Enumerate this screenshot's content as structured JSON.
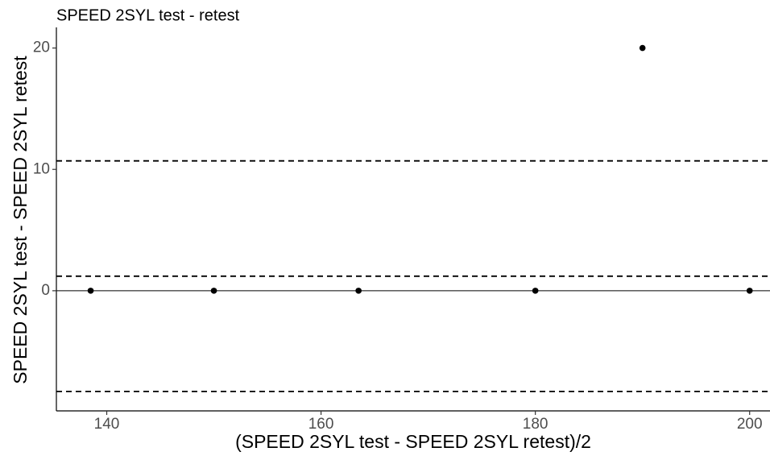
{
  "chart_data": {
    "type": "scatter",
    "title": "SPEED 2SYL test - retest",
    "x_label": "(SPEED 2SYL test - SPEED 2SYL retest)/2",
    "y_label": "SPEED 2SYL test - SPEED 2SYL retest",
    "x": [
      138.5,
      150,
      163.5,
      180,
      200,
      190
    ],
    "values": [
      0,
      0,
      0,
      0,
      0,
      20
    ],
    "color": "#000000",
    "xlim": [
      135.3,
      201.9
    ],
    "ylim": [
      -9.9,
      21.7
    ],
    "xticks": [
      140,
      160,
      180,
      200
    ],
    "yticks": [
      0,
      10,
      20
    ],
    "hlines": [
      {
        "y": 0,
        "style": "solid"
      },
      {
        "y": 10.7,
        "style": "dashed"
      },
      {
        "y": 1.2,
        "style": "dashed"
      },
      {
        "y": -8.3,
        "style": "dashed"
      }
    ],
    "grid": false
  }
}
